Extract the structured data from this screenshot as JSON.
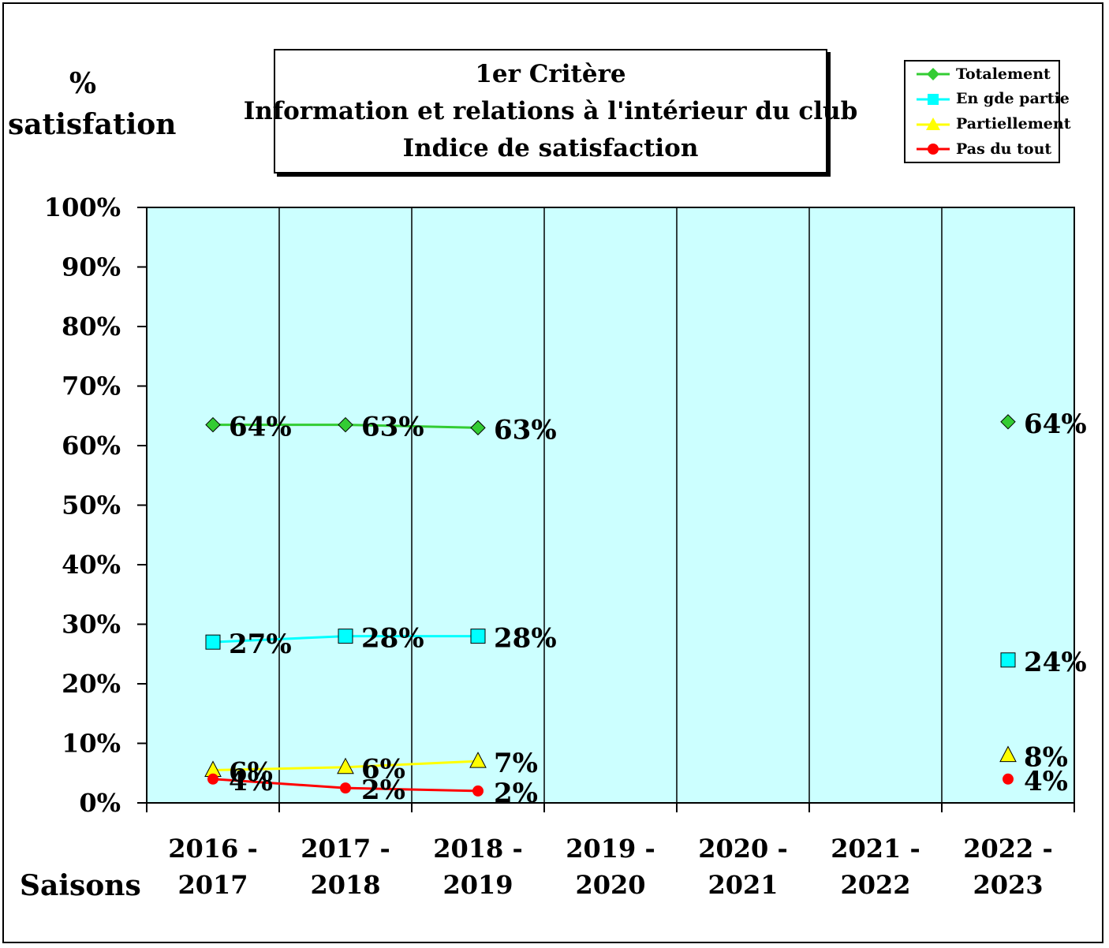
{
  "title": {
    "line1": "1er  Critère",
    "line2": "Information et relations à l'intérieur du club",
    "line3": "Indice de satisfaction"
  },
  "y_axis_title": {
    "line1": "%",
    "line2": "satisfation"
  },
  "x_axis_title": "Saisons",
  "legend": [
    {
      "name": "Totalement",
      "color": "#33cc33",
      "marker": "diamond"
    },
    {
      "name": "En gde partie",
      "color": "#00ffff",
      "marker": "square"
    },
    {
      "name": "Partiellement",
      "color": "#ffff00",
      "marker": "triangle"
    },
    {
      "name": "Pas du tout",
      "color": "#ff0000",
      "marker": "circle"
    }
  ],
  "chart_data": {
    "type": "line",
    "categories": [
      [
        "2016 -",
        "2017"
      ],
      [
        "2017 -",
        "2018"
      ],
      [
        "2018 -",
        "2019"
      ],
      [
        "2019 -",
        "2020"
      ],
      [
        "2020 -",
        "2021"
      ],
      [
        "2021 -",
        "2022"
      ],
      [
        "2022 -",
        "2023"
      ]
    ],
    "ylim": [
      0,
      100
    ],
    "y_ticks": [
      "0%",
      "10%",
      "20%",
      "30%",
      "40%",
      "50%",
      "60%",
      "70%",
      "80%",
      "90%",
      "100%"
    ],
    "grid": "vertical lines between categories",
    "legend_position": "top-right",
    "plot_background": "#ccffff",
    "series": [
      {
        "name": "Totalement",
        "color": "#33cc33",
        "marker": "diamond",
        "values": [
          63.5,
          63.5,
          63,
          null,
          null,
          null,
          64
        ],
        "labels": [
          "64%",
          "63%",
          "63%",
          "",
          "",
          "",
          "64%"
        ]
      },
      {
        "name": "En gde partie",
        "color": "#00ffff",
        "marker": "square",
        "values": [
          27,
          28,
          28,
          null,
          null,
          null,
          24
        ],
        "labels": [
          "27%",
          "28%",
          "28%",
          "",
          "",
          "",
          "24%"
        ]
      },
      {
        "name": "Partiellement",
        "color": "#ffff00",
        "marker": "triangle",
        "values": [
          5.5,
          6,
          7,
          null,
          null,
          null,
          8
        ],
        "labels": [
          "6%",
          "6%",
          "7%",
          "",
          "",
          "",
          "8%"
        ]
      },
      {
        "name": "Pas du tout",
        "color": "#ff0000",
        "marker": "circle",
        "values": [
          4,
          2.5,
          2,
          null,
          null,
          null,
          4
        ],
        "labels": [
          "4%",
          "2%",
          "2%",
          "",
          "",
          "",
          "4%"
        ]
      }
    ]
  }
}
